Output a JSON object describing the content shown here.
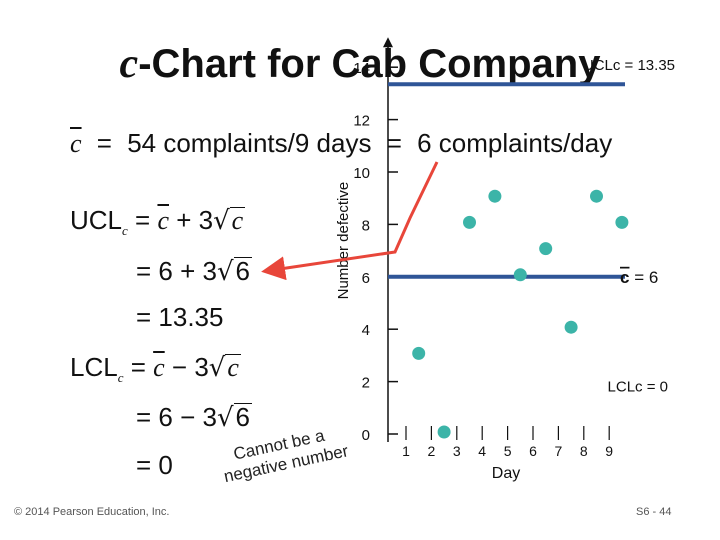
{
  "slide": {
    "title_c": "c",
    "title_rest": "-Chart for Cab Company",
    "footer": "© 2014 Pearson Education, Inc.",
    "page": "S6 - 44"
  },
  "formulas": {
    "cbar_symbol": "c",
    "cbar_eq1": "=",
    "cbar_value1": "54 complaints/9 days",
    "cbar_eq2": "=",
    "cbar_value2": "6 complaints/day",
    "ucl_label": "UCL",
    "ucl_sub": "c",
    "ucl_expr_pre": "= ",
    "ucl_expr_c1": "c",
    "ucl_expr_mid": " + 3",
    "ucl_expr_c2": "c",
    "ucl_step2_pre": "= 6 + 3",
    "ucl_step2_rad": "6",
    "ucl_step3": "= 13.35",
    "lcl_label": "LCL",
    "lcl_sub": "c",
    "lcl_expr_pre": "= ",
    "lcl_expr_c1": "c",
    "lcl_expr_mid": " − 3",
    "lcl_expr_c2": "c",
    "lcl_step2_pre": "= 6 − 3",
    "lcl_step2_rad": "6",
    "lcl_step3": "= 0",
    "note_line1": "Cannot be a",
    "note_line2": "negative number"
  },
  "colors": {
    "line": "#2f5597",
    "points": "#3cb4a8",
    "arrow": "#e8463a"
  },
  "chart_data": {
    "type": "scatter",
    "x": [
      1,
      2,
      3,
      4,
      5,
      6,
      7,
      8,
      9
    ],
    "values": [
      3,
      0,
      8,
      9,
      6,
      7,
      4,
      9,
      8
    ],
    "xlabel": "Day",
    "ylabel": "Number defective",
    "ylim": [
      0,
      14
    ],
    "y_ticks": [
      "0",
      "2",
      "4",
      "6",
      "8",
      "10",
      "12",
      "14"
    ],
    "x_ticks": [
      "1",
      "2",
      "3",
      "4",
      "5",
      "6",
      "7",
      "8",
      "9"
    ],
    "ucl": 13.35,
    "center": 6,
    "lcl": 0,
    "ucl_label": "UCLc = 13.35",
    "center_label_symbol": "c",
    "center_label_value": " =  6",
    "lcl_label": "LCLc = 0"
  }
}
